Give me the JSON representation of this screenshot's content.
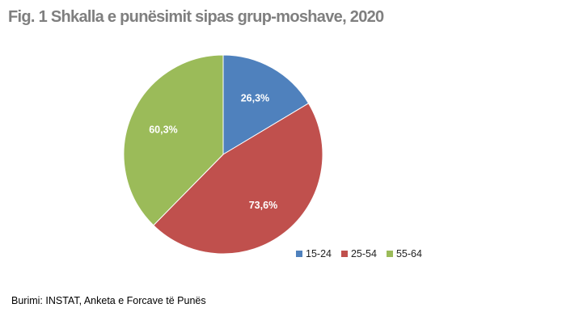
{
  "chart_data": {
    "type": "pie",
    "title": "Fig. 1 Shkalla e punësimit sipas grup-moshave, 2020",
    "categories": [
      "15-24",
      "25-54",
      "55-64"
    ],
    "values": [
      26.3,
      73.6,
      60.3
    ],
    "data_labels": [
      "26,3%",
      "73,6%",
      "60,3%"
    ],
    "colors": [
      "#4f81bd",
      "#c0504d",
      "#9bbb59"
    ],
    "legend_position": "bottom-right",
    "start_angle": "12 o'clock",
    "direction": "clockwise"
  },
  "legend": {
    "items": [
      {
        "label": "15-24",
        "color": "#4f81bd"
      },
      {
        "label": "25-54",
        "color": "#c0504d"
      },
      {
        "label": "55-64",
        "color": "#9bbb59"
      }
    ]
  },
  "source": "Burimi: INSTAT, Anketa e Forcave të Punës"
}
